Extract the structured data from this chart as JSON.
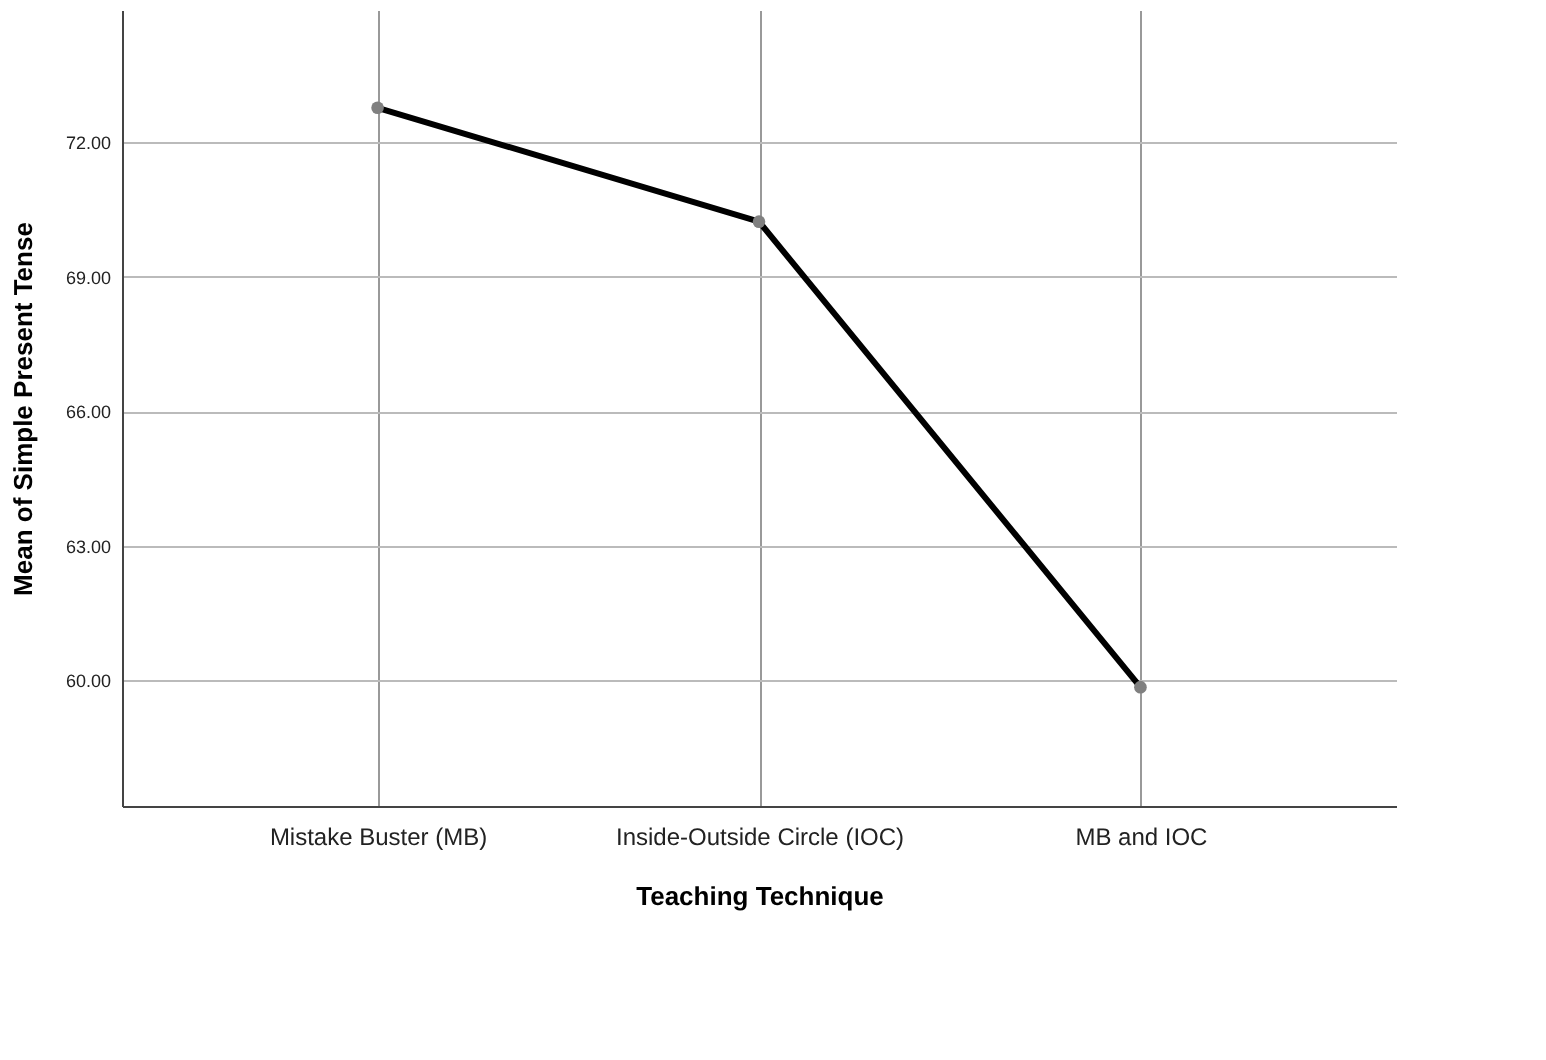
{
  "chart_data": {
    "type": "line",
    "xlabel": "Teaching Technique",
    "ylabel": "Mean of Simple Present Tense",
    "categories": [
      "Mistake Buster (MB)",
      "Inside-Outside Circle (IOC)",
      "MB and IOC"
    ],
    "series": [
      {
        "color": "#000000",
        "values": [
          72.77,
          70.23,
          59.85
        ]
      }
    ],
    "ylim": [
      57.2,
      74.95
    ],
    "yticks": [
      {
        "value": 60,
        "label": "60.00"
      },
      {
        "value": 63,
        "label": "63.00"
      },
      {
        "value": 66,
        "label": "66.00"
      },
      {
        "value": 69,
        "label": "69.00"
      },
      {
        "value": 72,
        "label": "72.00"
      }
    ],
    "grid": true,
    "marker": "circle",
    "line_style": "solid"
  }
}
